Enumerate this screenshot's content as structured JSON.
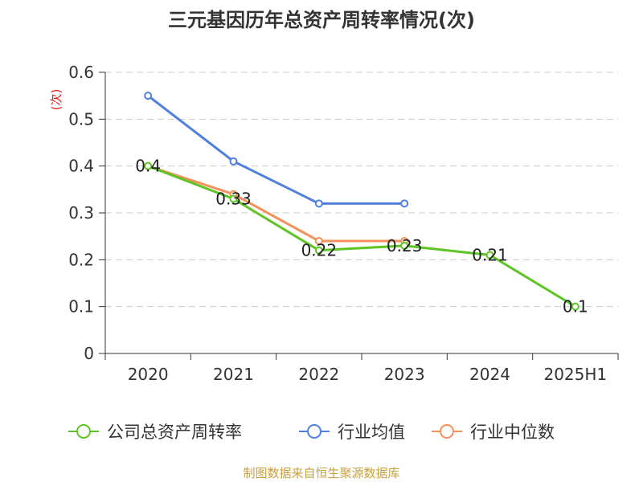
{
  "chart_data": {
    "type": "line",
    "title": "三元基因历年总资产周转率情况(次)",
    "ylabel": "(次)",
    "categories": [
      "2020",
      "2021",
      "2022",
      "2023",
      "2024",
      "2025H1"
    ],
    "ylim": [
      0,
      0.6
    ],
    "y_ticks": [
      "0",
      "0.1",
      "0.2",
      "0.3",
      "0.4",
      "0.5",
      "0.6"
    ],
    "grid": true,
    "legend_position": "bottom",
    "series": [
      {
        "name": "公司总资产周转率",
        "color": "#5ec423",
        "values": [
          0.4,
          0.33,
          0.22,
          0.23,
          0.21,
          0.1
        ],
        "labels": [
          "0.4",
          "0.33",
          "0.22",
          "0.23",
          "0.21",
          "0.1"
        ]
      },
      {
        "name": "行业均值",
        "color": "#4f80de",
        "values": [
          0.55,
          0.41,
          0.32,
          0.32,
          null,
          null
        ]
      },
      {
        "name": "行业中位数",
        "color": "#f4905a",
        "values": [
          0.4,
          0.34,
          0.24,
          0.24,
          null,
          null
        ]
      }
    ],
    "source": "制图数据来自恒生聚源数据库",
    "colors": {
      "axis": "#333333",
      "grid": "#cccccc",
      "unit": "#e02020",
      "source": "#c8a040"
    }
  }
}
